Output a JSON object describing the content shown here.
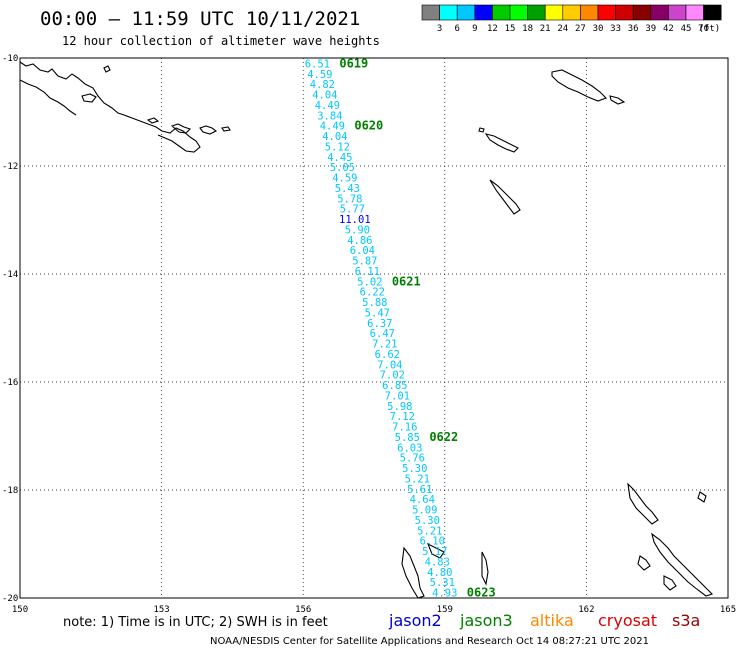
{
  "title": "00:00 – 11:59 UTC 10/11/2021",
  "subtitle": "12 hour collection of altimeter wave heights",
  "color_scale": {
    "labels": [
      "3",
      "6",
      "9",
      "12",
      "15",
      "18",
      "21",
      "24",
      "27",
      "30",
      "33",
      "36",
      "39",
      "42",
      "45",
      "70"
    ],
    "unit": "(ft)",
    "colors": [
      "#808080",
      "#00ffff",
      "#00c8ff",
      "#0000ff",
      "#00cc00",
      "#00ff00",
      "#00a000",
      "#ffff00",
      "#ffcc00",
      "#ff8800",
      "#ff0000",
      "#cc0000",
      "#880000",
      "#880066",
      "#cc44cc",
      "#ff88ff",
      "#000000"
    ]
  },
  "map": {
    "lon_min": 150,
    "lon_max": 165,
    "lat_min": -20,
    "lat_max": -10,
    "x_ticks": [
      "150",
      "153",
      "156",
      "159",
      "162",
      "165"
    ],
    "x_tick_values": [
      150,
      153,
      156,
      159,
      162,
      165
    ],
    "y_ticks": [
      "-10",
      "-12",
      "-14",
      "-16",
      "-18",
      "-20"
    ],
    "y_tick_values": [
      -10,
      -12,
      -14,
      -16,
      -18,
      -20
    ]
  },
  "track": {
    "mission": "jason3",
    "start": {
      "lon": 156.3,
      "lat": -10.1
    },
    "end": {
      "lon": 159.0,
      "lat": -19.9
    },
    "swh_ft": [
      "6.51",
      "4.59",
      "4.82",
      "4.04",
      "4.49",
      "3.84",
      "4.49",
      "4.04",
      "5.12",
      "4.45",
      "5.05",
      "4.59",
      "5.43",
      "5.78",
      "5.77",
      "11.01",
      "5.90",
      "4.86",
      "6.04",
      "5.87",
      "6.11",
      "5.02",
      "6.22",
      "5.88",
      "5.47",
      "6.37",
      "6.47",
      "7.21",
      "6.62",
      "7.04",
      "7.02",
      "6.85",
      "7.01",
      "5.98",
      "7.12",
      "7.16",
      "5.85",
      "6.03",
      "5.76",
      "5.30",
      "5.21",
      "5.61",
      "4.64",
      "5.09",
      "5.30",
      "5.21",
      "6.10",
      "5.17",
      "4.83",
      "4.80",
      "5.31",
      "4.93"
    ],
    "swh_colors": [
      "#00c8ff",
      "#00c8ff",
      "#00c8ff",
      "#00c8ff",
      "#00c8ff",
      "#00c8ff",
      "#00c8ff",
      "#00c8ff",
      "#00c8ff",
      "#00c8ff",
      "#00c8ff",
      "#00c8ff",
      "#00c8ff",
      "#00c8ff",
      "#00c8ff",
      "#0000ff",
      "#00c8ff",
      "#00c8ff",
      "#00c8ff",
      "#00c8ff",
      "#00c8ff",
      "#00c8ff",
      "#00c8ff",
      "#00c8ff",
      "#00c8ff",
      "#00c8ff",
      "#00c8ff",
      "#00c8ff",
      "#00c8ff",
      "#00c8ff",
      "#00c8ff",
      "#00c8ff",
      "#00c8ff",
      "#00c8ff",
      "#00c8ff",
      "#00c8ff",
      "#00c8ff",
      "#00c8ff",
      "#00c8ff",
      "#00c8ff",
      "#00c8ff",
      "#00c8ff",
      "#00c8ff",
      "#00c8ff",
      "#00c8ff",
      "#00c8ff",
      "#00c8ff",
      "#00c8ff",
      "#00c8ff",
      "#00c8ff",
      "#00c8ff",
      "#00c8ff"
    ],
    "times": [
      {
        "label": "0619",
        "index": 0
      },
      {
        "label": "0620",
        "index": 6
      },
      {
        "label": "0621",
        "index": 21
      },
      {
        "label": "0622",
        "index": 36
      },
      {
        "label": "0623",
        "index": 51
      }
    ]
  },
  "footer": {
    "note": "note: 1) Time is in UTC; 2) SWH is in feet",
    "missions": [
      {
        "name": "jason2",
        "color": "#0000cc"
      },
      {
        "name": "jason3",
        "color": "#008000"
      },
      {
        "name": "altika",
        "color": "#ff8800"
      },
      {
        "name": "cryosat",
        "color": "#dd0000"
      },
      {
        "name": "s3a",
        "color": "#990000"
      }
    ],
    "credit": "NOAA/NESDIS Center for Satellite Applications and Research    Oct 14 08:27:21 UTC 2021"
  }
}
